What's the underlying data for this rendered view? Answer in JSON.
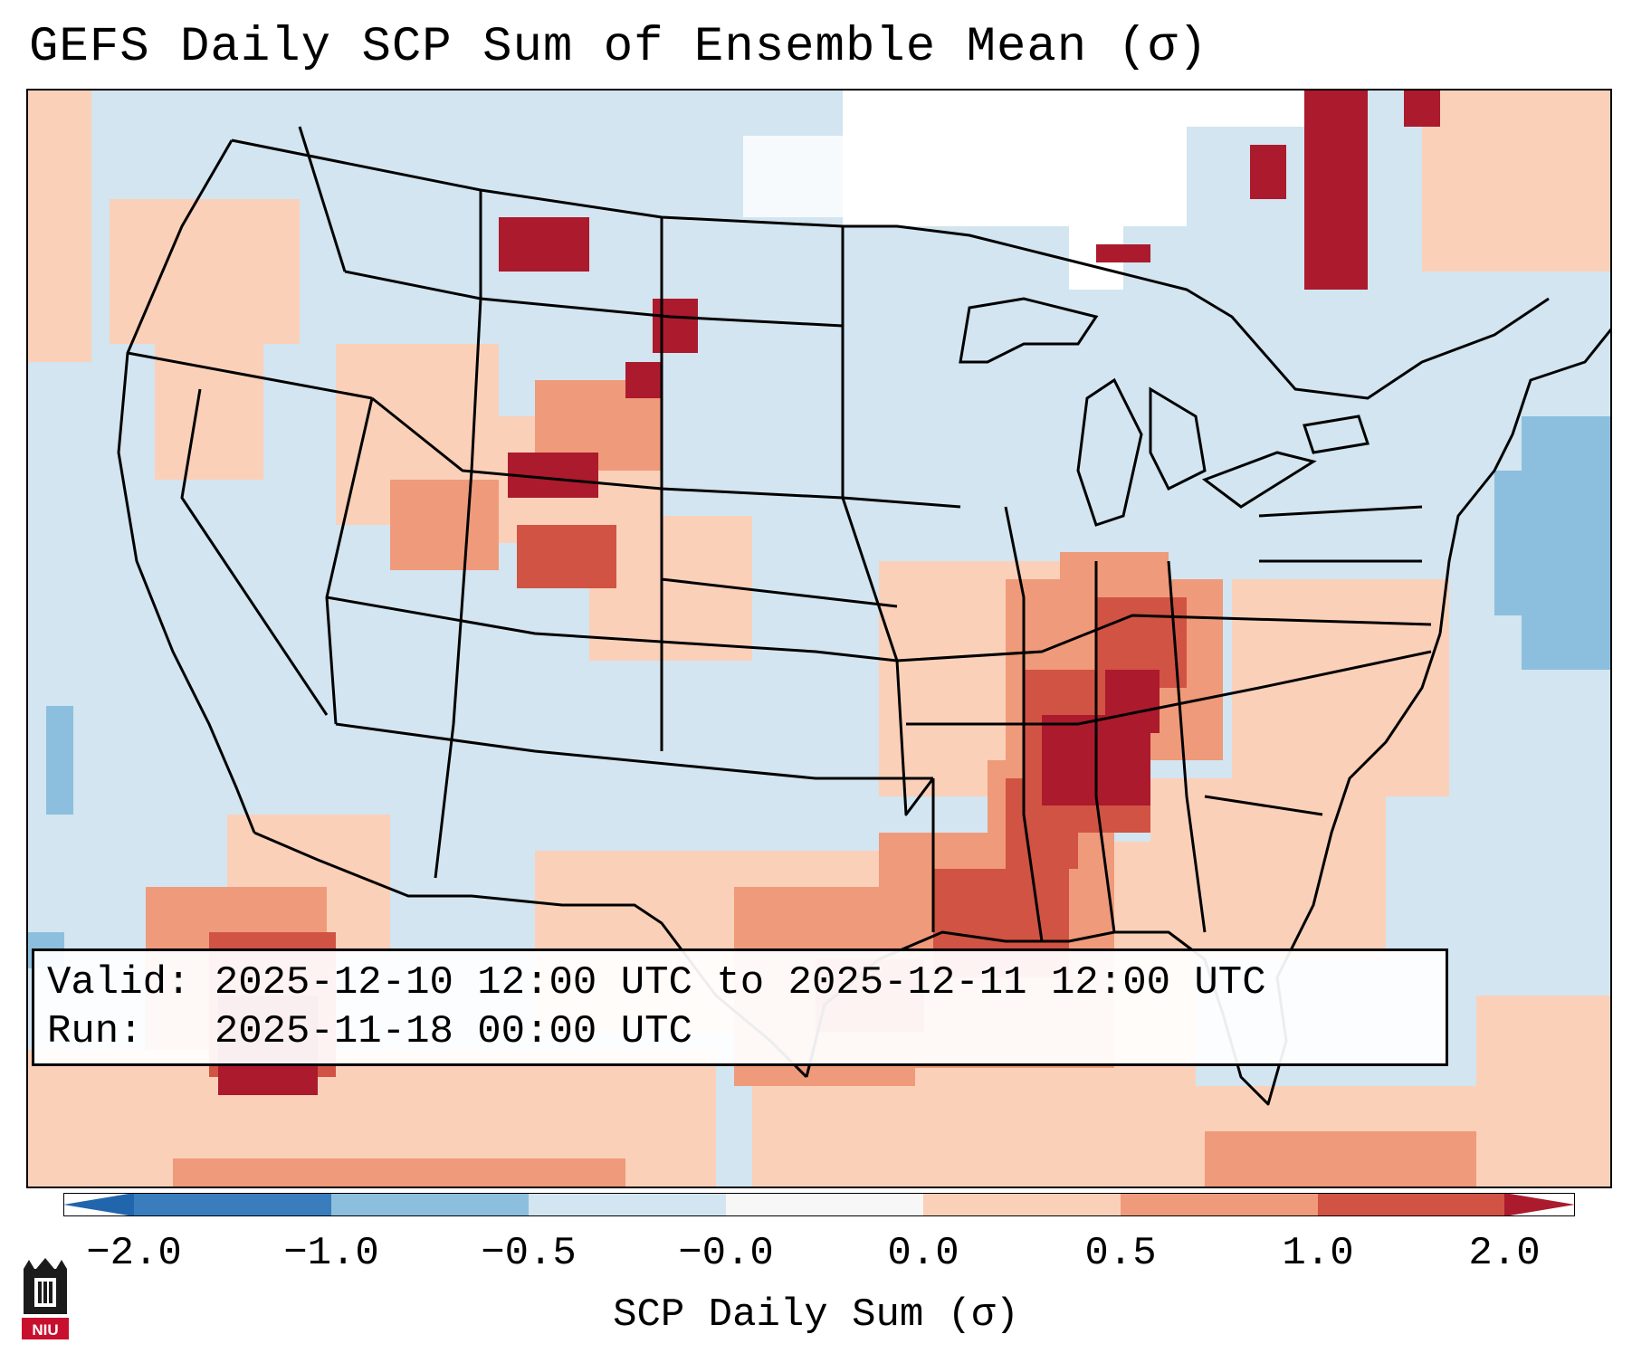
{
  "title": "GEFS Daily SCP Sum of Ensemble Mean (σ)",
  "info": {
    "valid_line": "Valid: 2025-12-10 12:00 UTC to 2025-12-11 12:00 UTC",
    "run_line": "Run:   2025-11-18 00:00 UTC"
  },
  "colorbar": {
    "label": "SCP Daily Sum (σ)",
    "ticks": [
      "−2.0",
      "−1.0",
      "−0.5",
      "−0.0",
      "0.0",
      "0.5",
      "1.0",
      "2.0"
    ],
    "colors": [
      "#3a7dbd",
      "#8cbfdd",
      "#d2e5f0",
      "#f7f7f7",
      "#fbd0b9",
      "#ef9a7a",
      "#d05344",
      "#ac1a2d"
    ]
  },
  "logo_text": "NIU",
  "colors": {
    "ocean_background": "#d2e5f0",
    "land_neutral": "#d2e5f0",
    "low_anomaly_white": "#ffffff",
    "anomaly_light": "#fbd0b9",
    "anomaly_medium": "#ef9a7a",
    "anomaly_high": "#d05344",
    "anomaly_extreme": "#ac1a2d"
  }
}
